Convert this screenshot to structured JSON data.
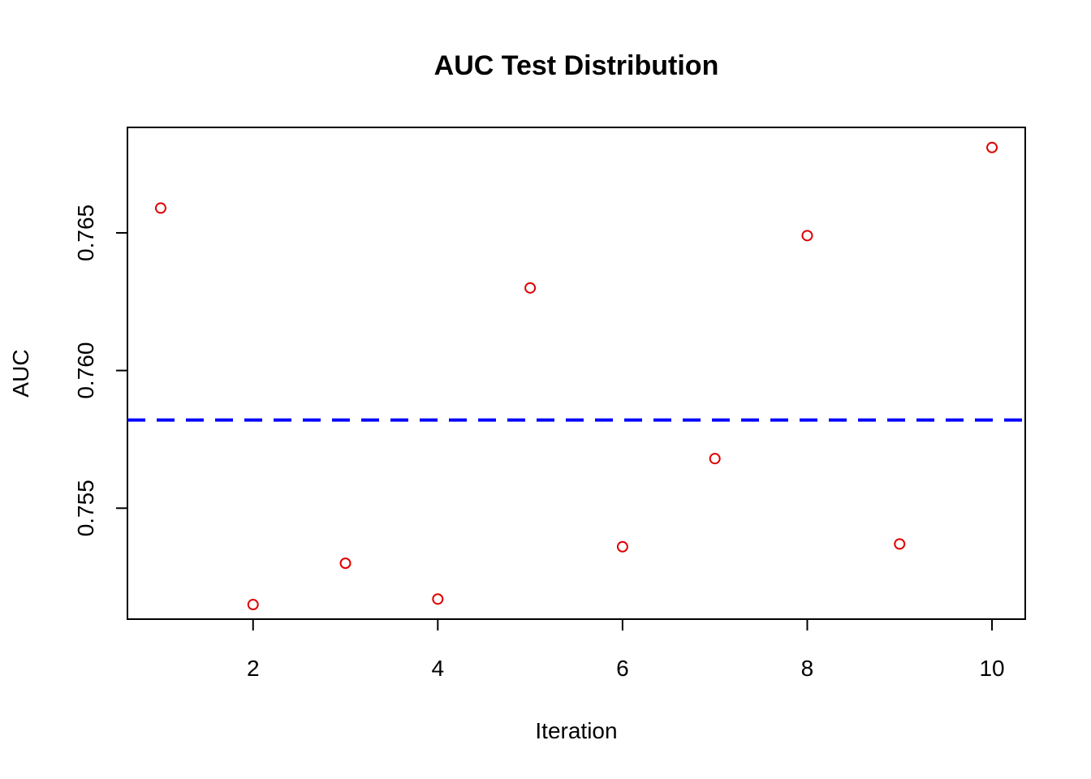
{
  "chart_data": {
    "type": "scatter",
    "title": "AUC Test Distribution",
    "xlabel": "Iteration",
    "ylabel": "AUC",
    "xlim": [
      0.64,
      10.36
    ],
    "ylim": [
      0.75097,
      0.76883
    ],
    "x_ticks": [
      2,
      4,
      6,
      8,
      10
    ],
    "y_ticks": [
      0.755,
      0.76,
      0.765
    ],
    "y_tick_labels": [
      "0.755",
      "0.760",
      "0.765"
    ],
    "grid": false,
    "legend": "none",
    "series": [
      {
        "marker": "open-circle",
        "color": "#e00000",
        "x": [
          1,
          2,
          3,
          4,
          5,
          6,
          7,
          8,
          9,
          10
        ],
        "y": [
          0.7659,
          0.7515,
          0.753,
          0.7517,
          0.763,
          0.7536,
          0.7568,
          0.7649,
          0.7537,
          0.7681
        ]
      }
    ],
    "hlines": [
      {
        "y": 0.7582,
        "style": "dashed",
        "color": "#0000ff"
      }
    ]
  }
}
